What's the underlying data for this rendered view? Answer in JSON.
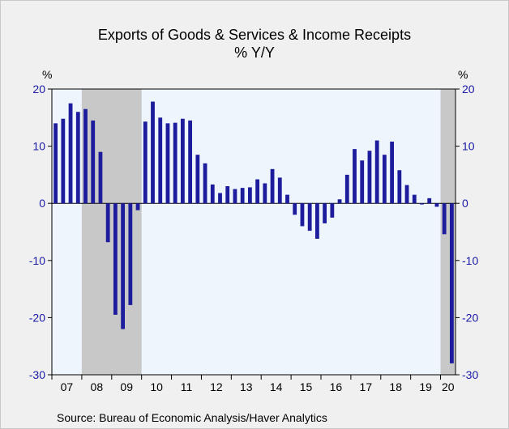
{
  "title": "Exports of Goods & Services & Income Receipts",
  "subtitle": "% Y/Y",
  "unit_left": "%",
  "unit_right": "%",
  "source": "Source:  Bureau of Economic Analysis/Haver Analytics",
  "colors": {
    "bar": "#1c1c9c",
    "plot_bg": "#eef5fd",
    "recession": "#c8c8c8",
    "tick_text": "#1a1aa6"
  },
  "chart_data": {
    "type": "bar",
    "title": "Exports of Goods & Services & Income Receipts",
    "subtitle": "% Y/Y",
    "ylim": [
      -30,
      20
    ],
    "yticks": [
      -30,
      -20,
      -10,
      0,
      10,
      20
    ],
    "grid": false,
    "years": [
      "07",
      "08",
      "09",
      "10",
      "11",
      "12",
      "13",
      "14",
      "15",
      "16",
      "17",
      "18",
      "19",
      "20"
    ],
    "recession_shading": [
      {
        "start_quarter_index": 4,
        "end_quarter_index": 11
      },
      {
        "start_quarter_index": 52,
        "end_quarter_index": 53
      }
    ],
    "categories": [
      "07Q1",
      "07Q2",
      "07Q3",
      "07Q4",
      "08Q1",
      "08Q2",
      "08Q3",
      "08Q4",
      "09Q1",
      "09Q2",
      "09Q3",
      "09Q4",
      "10Q1",
      "10Q2",
      "10Q3",
      "10Q4",
      "11Q1",
      "11Q2",
      "11Q3",
      "11Q4",
      "12Q1",
      "12Q2",
      "12Q3",
      "12Q4",
      "13Q1",
      "13Q2",
      "13Q3",
      "13Q4",
      "14Q1",
      "14Q2",
      "14Q3",
      "14Q4",
      "15Q1",
      "15Q2",
      "15Q3",
      "15Q4",
      "16Q1",
      "16Q2",
      "16Q3",
      "16Q4",
      "17Q1",
      "17Q2",
      "17Q3",
      "17Q4",
      "18Q1",
      "18Q2",
      "18Q3",
      "18Q4",
      "19Q1",
      "19Q2",
      "19Q3",
      "19Q4",
      "20Q1",
      "20Q2"
    ],
    "values": [
      14.0,
      14.8,
      17.5,
      16.0,
      16.5,
      14.5,
      9.0,
      -6.8,
      -19.5,
      -22.0,
      -17.8,
      -1.2,
      14.3,
      17.8,
      15.0,
      14.0,
      14.1,
      14.8,
      14.5,
      8.5,
      7.0,
      3.3,
      1.8,
      3.0,
      2.5,
      2.7,
      2.8,
      4.2,
      3.5,
      6.0,
      4.5,
      1.5,
      -2.0,
      -4.0,
      -4.8,
      -6.2,
      -3.5,
      -2.5,
      0.7,
      5.0,
      9.5,
      7.5,
      9.2,
      11.0,
      8.5,
      10.8,
      5.8,
      3.2,
      1.5,
      -0.2,
      0.9,
      -0.6,
      -5.4,
      -28.0
    ]
  }
}
